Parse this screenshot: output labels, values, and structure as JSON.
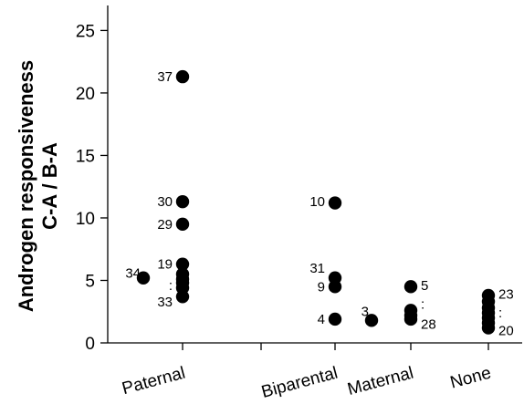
{
  "chart_data": {
    "type": "scatter",
    "title": "",
    "ylabel_line1": "Androgen responsiveness",
    "ylabel_line2": "C-A / B-A",
    "ylim": [
      0,
      27
    ],
    "yticks": [
      0,
      5,
      10,
      15,
      20,
      25
    ],
    "grid": false,
    "categories": [
      "Paternal",
      "Biparental",
      "Maternal",
      "None"
    ],
    "points": [
      {
        "category": "Paternal",
        "y": 21.3
      },
      {
        "category": "Paternal",
        "y": 11.3
      },
      {
        "category": "Paternal",
        "y": 9.5
      },
      {
        "category": "Paternal",
        "y": 6.3
      },
      {
        "category": "Paternal",
        "y": 5.5
      },
      {
        "category": "Paternal",
        "y": 5.1
      },
      {
        "category": "Paternal",
        "y": 4.8
      },
      {
        "category": "Paternal",
        "y": 4.4
      },
      {
        "category": "Paternal",
        "y": 3.7
      },
      {
        "category": "Paternal",
        "y": 5.2,
        "offset": "left"
      },
      {
        "category": "Biparental",
        "y": 11.2
      },
      {
        "category": "Biparental",
        "y": 5.2
      },
      {
        "category": "Biparental",
        "y": 4.5
      },
      {
        "category": "Biparental",
        "y": 1.9
      },
      {
        "category": "Maternal",
        "y": 1.8,
        "offset": "left"
      },
      {
        "category": "Maternal",
        "y": 4.5
      },
      {
        "category": "Maternal",
        "y": 2.6
      },
      {
        "category": "Maternal",
        "y": 2.2
      },
      {
        "category": "Maternal",
        "y": 1.9
      },
      {
        "category": "None",
        "y": 3.8
      },
      {
        "category": "None",
        "y": 3.3
      },
      {
        "category": "None",
        "y": 2.8
      },
      {
        "category": "None",
        "y": 2.4
      },
      {
        "category": "None",
        "y": 2.0
      },
      {
        "category": "None",
        "y": 1.6
      },
      {
        "category": "None",
        "y": 1.2
      }
    ],
    "annotations": [
      {
        "category": "Paternal",
        "y": 21.3,
        "text": "37",
        "side": "left"
      },
      {
        "category": "Paternal",
        "y": 11.3,
        "text": "30",
        "side": "left"
      },
      {
        "category": "Paternal",
        "y": 9.5,
        "text": "29",
        "side": "left"
      },
      {
        "category": "Paternal",
        "y": 6.3,
        "text": "19",
        "side": "left"
      },
      {
        "category": "Paternal",
        "y": 4.6,
        "text": ":",
        "side": "left"
      },
      {
        "category": "Paternal",
        "y": 3.3,
        "text": "33",
        "side": "left"
      },
      {
        "category": "Paternal",
        "y": 5.6,
        "text": "34",
        "side": "farleft"
      },
      {
        "category": "Biparental",
        "y": 11.3,
        "text": "10",
        "side": "left"
      },
      {
        "category": "Biparental",
        "y": 6.0,
        "text": "31",
        "side": "left"
      },
      {
        "category": "Biparental",
        "y": 4.5,
        "text": "9",
        "side": "left"
      },
      {
        "category": "Biparental",
        "y": 1.9,
        "text": "4",
        "side": "left"
      },
      {
        "category": "Maternal",
        "y": 2.5,
        "text": "3",
        "side": "farleft"
      },
      {
        "category": "Maternal",
        "y": 4.6,
        "text": "5",
        "side": "right"
      },
      {
        "category": "Maternal",
        "y": 3.1,
        "text": ":",
        "side": "right"
      },
      {
        "category": "Maternal",
        "y": 1.5,
        "text": "28",
        "side": "right"
      },
      {
        "category": "None",
        "y": 3.9,
        "text": "23",
        "side": "right"
      },
      {
        "category": "None",
        "y": 2.4,
        "text": ":",
        "side": "right"
      },
      {
        "category": "None",
        "y": 1.0,
        "text": "20",
        "side": "right"
      }
    ]
  }
}
